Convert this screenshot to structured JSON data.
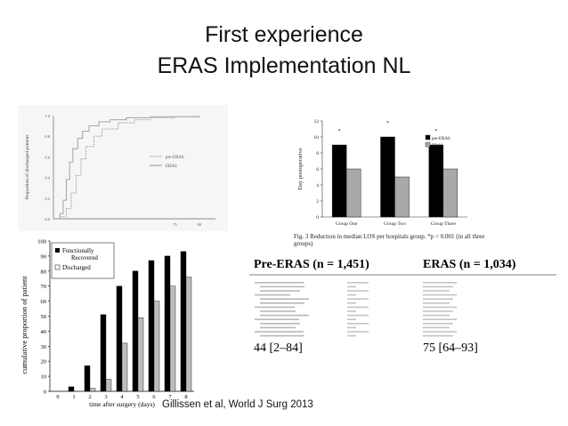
{
  "slide": {
    "title_line1": "First experience",
    "title_line2": "ERAS Implementation NL",
    "citation": "Gillissen et al,  World J Surg 2013"
  },
  "chart_data": [
    {
      "type": "line",
      "description_level": "step-curves",
      "ylabel": "Proportion of discharged patients",
      "y_ticks": [
        "0.0",
        "0.2",
        "0.4",
        "0.6",
        "0.8",
        "1.0"
      ],
      "x_ticks": [
        "75",
        "90"
      ],
      "series": [
        {
          "name": "pre-ERAS",
          "style": "dotted",
          "x": [
            2,
            5,
            8,
            11,
            14,
            17,
            20,
            25,
            30,
            40,
            50,
            60,
            75,
            90
          ],
          "y": [
            0.0,
            0.02,
            0.1,
            0.25,
            0.42,
            0.58,
            0.7,
            0.8,
            0.87,
            0.93,
            0.96,
            0.98,
            0.99,
            1.0
          ]
        },
        {
          "name": "ERAS",
          "style": "solid",
          "x": [
            2,
            4,
            6,
            8,
            10,
            12,
            15,
            18,
            22,
            28,
            35,
            45,
            60,
            90
          ],
          "y": [
            0.0,
            0.05,
            0.18,
            0.38,
            0.55,
            0.68,
            0.78,
            0.85,
            0.9,
            0.94,
            0.96,
            0.98,
            0.99,
            1.0
          ]
        }
      ]
    },
    {
      "type": "bar",
      "ylabel": "Day postoperative",
      "categories": [
        "Group One",
        "Group Two",
        "Group Three"
      ],
      "ylim": [
        0,
        12
      ],
      "y_ticks": [
        "0",
        "2",
        "4",
        "6",
        "8",
        "10",
        "12"
      ],
      "annotation": "*",
      "legend": "top-right",
      "series": [
        {
          "name": "pre-ERAS",
          "color": "#000000",
          "values": [
            9,
            10,
            9
          ]
        },
        {
          "name": "ERAS",
          "color": "#a9a9a9",
          "values": [
            6,
            5,
            6
          ]
        }
      ]
    },
    {
      "type": "bar",
      "ylabel": "cumulative proportion of patient",
      "xlabel": "time after surgery (days)",
      "categories": [
        "0",
        "1",
        "2",
        "3",
        "4",
        "5",
        "6",
        "7",
        "8"
      ],
      "ylim": [
        0,
        100
      ],
      "y_ticks": [
        "0",
        "10",
        "20",
        "30",
        "40",
        "50",
        "60",
        "70",
        "80",
        "90",
        "100"
      ],
      "legend": "top-left",
      "series": [
        {
          "name": "Functionally Recovered",
          "color": "#000000",
          "values": [
            0,
            3,
            17,
            51,
            70,
            80,
            87,
            90,
            93
          ]
        },
        {
          "name": "Discharged",
          "color": "#bdbdbd",
          "values": [
            0,
            0,
            2,
            8,
            32,
            49,
            60,
            70,
            76
          ]
        }
      ]
    }
  ],
  "figure_caption": "Fig. 3  Reduction in median LOS per hospitals group. *p < 0.001 (in all three groups)",
  "table": {
    "col_pre": "Pre-ERAS (n = 1,451)",
    "col_eras": "ERAS (n = 1,034)",
    "median_pre": "44 [2–84]",
    "median_eras": "75 [64–93]"
  }
}
